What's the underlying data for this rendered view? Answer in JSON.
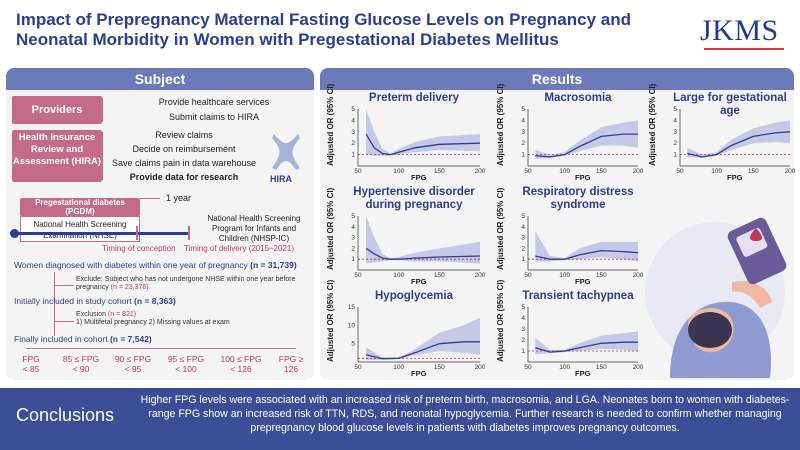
{
  "header": {
    "title_line1": "Impact of Prepregnancy Maternal Fasting Glucose Levels on Pregnancy and",
    "title_line2": "Neonatal Morbidity in Women with Pregestational Diabetes Mellitus",
    "logo": "JKMS"
  },
  "subject": {
    "heading": "Subject",
    "providers_label": "Providers",
    "providers_items": [
      "Provide healthcare services",
      "Submit claims to HIRA"
    ],
    "hira_label": "Health Insurance Review and Assessment (HIRA)",
    "hira_items": [
      "Review claims",
      "Decide on reimbursement",
      "Save claims pain in data warehouse",
      "Provide data for research"
    ],
    "hira_logo_text": "HIRA",
    "pgdm_label": "Pregestational diabetes (PGDM)",
    "one_year": "1 year",
    "nhse_label": "National Health Screening Examination (NHSE)",
    "nhspic_label": "National Health Screening Program for Infants and Children (NHSP-IC)",
    "timing_conception": "Timing of conception",
    "timing_delivery": "Timing of delivery (2015–2021)",
    "step1_text": "Women diagnosed with diabetes within one year of pregnancy",
    "step1_n": "(n = 31,739)",
    "exclude1_text": "Exclude: Subject who has not undergone NHSE within one year before pregnancy",
    "exclude1_n": "(n = 23,376)",
    "step2_text": "Initially included in study cohort",
    "step2_n": "(n = 8,363)",
    "exclude2_title": "Exclusion",
    "exclude2_n": "(n = 821)",
    "exclude2_items": "1) Multifetal pregnancy  2) Missing values at exam",
    "step3_text": "Finally included in cohort",
    "step3_n": "(n = 7,542)",
    "fpg_categories": [
      [
        "FPG",
        "< 85"
      ],
      [
        "85 ≤ FPG",
        "< 90"
      ],
      [
        "90 ≤ FPG",
        "< 95"
      ],
      [
        "95 ≤ FPG",
        "< 100"
      ],
      [
        "100 ≤ FPG",
        "< 126"
      ],
      [
        "FPG ≥",
        "126"
      ]
    ]
  },
  "results": {
    "heading": "Results",
    "y_label": "Adjusted OR (95% CI)",
    "x_label": "FPG"
  },
  "chart_data": [
    {
      "type": "line",
      "title": "Preterm delivery",
      "xlabel": "FPG",
      "ylabel": "Adjusted OR (95% CI)",
      "xlim": [
        50,
        200
      ],
      "ylim": [
        0,
        5
      ],
      "xticks": [
        50,
        100,
        150,
        200
      ],
      "yticks": [
        1,
        2,
        3,
        4,
        5
      ],
      "reference_line": 1,
      "x": [
        60,
        70,
        80,
        90,
        100,
        120,
        150,
        200
      ],
      "y": [
        2.8,
        1.6,
        1.1,
        1.0,
        1.2,
        1.6,
        1.9,
        2.0
      ],
      "ci_low": [
        1.0,
        0.9,
        0.9,
        0.9,
        1.0,
        1.2,
        1.4,
        1.3
      ],
      "ci_high": [
        5.0,
        3.0,
        1.5,
        1.1,
        1.5,
        2.1,
        2.6,
        2.8
      ]
    },
    {
      "type": "line",
      "title": "Macrosomia",
      "xlabel": "FPG",
      "ylabel": "Adjusted OR (95% CI)",
      "xlim": [
        50,
        200
      ],
      "ylim": [
        0,
        5
      ],
      "xticks": [
        50,
        100,
        150,
        200
      ],
      "yticks": [
        1,
        2,
        3,
        4,
        5
      ],
      "reference_line": 1,
      "x": [
        60,
        80,
        100,
        120,
        150,
        180,
        200
      ],
      "y": [
        0.9,
        0.8,
        1.0,
        1.7,
        2.6,
        2.8,
        2.8
      ],
      "ci_low": [
        0.6,
        0.7,
        0.9,
        1.3,
        1.8,
        1.8,
        1.6
      ],
      "ci_high": [
        1.4,
        1.0,
        1.2,
        2.2,
        3.4,
        3.8,
        4.0
      ]
    },
    {
      "type": "line",
      "title": "Large for gestational age",
      "xlabel": "FPG",
      "ylabel": "Adjusted OR (95% CI)",
      "xlim": [
        50,
        200
      ],
      "ylim": [
        0,
        5
      ],
      "xticks": [
        50,
        100,
        150,
        200
      ],
      "yticks": [
        1,
        2,
        3,
        4,
        5
      ],
      "reference_line": 1,
      "x": [
        60,
        80,
        100,
        120,
        150,
        180,
        200
      ],
      "y": [
        1.1,
        0.8,
        1.0,
        1.8,
        2.6,
        2.9,
        3.0
      ],
      "ci_low": [
        0.8,
        0.7,
        0.9,
        1.4,
        2.0,
        2.1,
        2.0
      ],
      "ci_high": [
        1.6,
        1.0,
        1.2,
        2.3,
        3.3,
        3.8,
        4.0
      ]
    },
    {
      "type": "line",
      "title": "Hypertensive disorder during pregnancy",
      "xlabel": "FPG",
      "ylabel": "Adjusted OR (95% CI)",
      "xlim": [
        50,
        200
      ],
      "ylim": [
        0,
        5
      ],
      "xticks": [
        50,
        100,
        150,
        200
      ],
      "yticks": [
        1,
        2,
        3,
        4,
        5
      ],
      "reference_line": 1,
      "x": [
        60,
        70,
        80,
        90,
        100,
        120,
        150,
        200
      ],
      "y": [
        2.0,
        1.5,
        1.1,
        1.0,
        1.0,
        1.1,
        1.2,
        1.3
      ],
      "ci_low": [
        0.6,
        0.7,
        0.8,
        0.9,
        0.9,
        0.8,
        0.8,
        0.6
      ],
      "ci_high": [
        5.0,
        3.0,
        1.5,
        1.1,
        1.2,
        1.6,
        2.0,
        2.6
      ]
    },
    {
      "type": "line",
      "title": "Respiratory distress syndrome",
      "xlabel": "FPG",
      "ylabel": "Adjusted OR (95% CI)",
      "xlim": [
        50,
        200
      ],
      "ylim": [
        0,
        5
      ],
      "xticks": [
        50,
        100,
        150,
        200
      ],
      "yticks": [
        1,
        2,
        3,
        4,
        5
      ],
      "reference_line": 1,
      "x": [
        60,
        80,
        100,
        120,
        150,
        180,
        200
      ],
      "y": [
        1.3,
        1.0,
        1.0,
        1.4,
        1.8,
        1.7,
        1.6
      ],
      "ci_low": [
        0.8,
        0.8,
        0.9,
        1.0,
        1.2,
        1.0,
        0.8
      ],
      "ci_high": [
        3.6,
        1.3,
        1.1,
        2.0,
        2.6,
        2.6,
        2.6
      ]
    },
    {
      "type": "line",
      "title": "Hypoglycemia",
      "xlabel": "FPG",
      "ylabel": "Adjusted OR (95% CI)",
      "xlim": [
        50,
        200
      ],
      "ylim": [
        0,
        15
      ],
      "xticks": [
        50,
        100,
        150,
        200
      ],
      "yticks": [
        5,
        10,
        15
      ],
      "reference_line": 1,
      "x": [
        60,
        80,
        100,
        120,
        150,
        180,
        200
      ],
      "y": [
        2.0,
        0.9,
        1.0,
        2.5,
        5.0,
        5.5,
        5.5
      ],
      "ci_low": [
        0.5,
        0.6,
        0.9,
        1.8,
        3.0,
        2.5,
        2.0
      ],
      "ci_high": [
        4.0,
        1.2,
        1.2,
        3.5,
        8.0,
        10.0,
        12.0
      ]
    },
    {
      "type": "line",
      "title": "Transient tachypnea",
      "xlabel": "FPG",
      "ylabel": "Adjusted OR (95% CI)",
      "xlim": [
        50,
        200
      ],
      "ylim": [
        0,
        5
      ],
      "xticks": [
        50,
        100,
        150,
        200
      ],
      "yticks": [
        1,
        2,
        3,
        4,
        5
      ],
      "reference_line": 1,
      "x": [
        60,
        80,
        100,
        120,
        150,
        180,
        200
      ],
      "y": [
        1.3,
        0.9,
        1.0,
        1.3,
        1.7,
        1.8,
        1.8
      ],
      "ci_low": [
        0.7,
        0.8,
        0.9,
        1.0,
        1.2,
        1.1,
        1.0
      ],
      "ci_high": [
        2.2,
        1.1,
        1.1,
        1.7,
        2.4,
        2.6,
        2.8
      ]
    }
  ],
  "conclusions": {
    "label": "Conclusions",
    "text": "Higher FPG levels were associated with an increased risk of preterm birth, macrosomia, and LGA. Neonates born to women with diabetes-range FPG show an increased risk of TTN, RDS, and neonatal hypoglycemia. Further research is needed to confirm whether managing prepregnancy blood glucose levels in patients with diabetes improves pregnancy outcomes."
  },
  "colors": {
    "primary": "#2a3f8f",
    "pink": "#c46b8a",
    "band": "#9aa6d8",
    "curve": "#2e3f92",
    "ref": "#c0305a"
  }
}
